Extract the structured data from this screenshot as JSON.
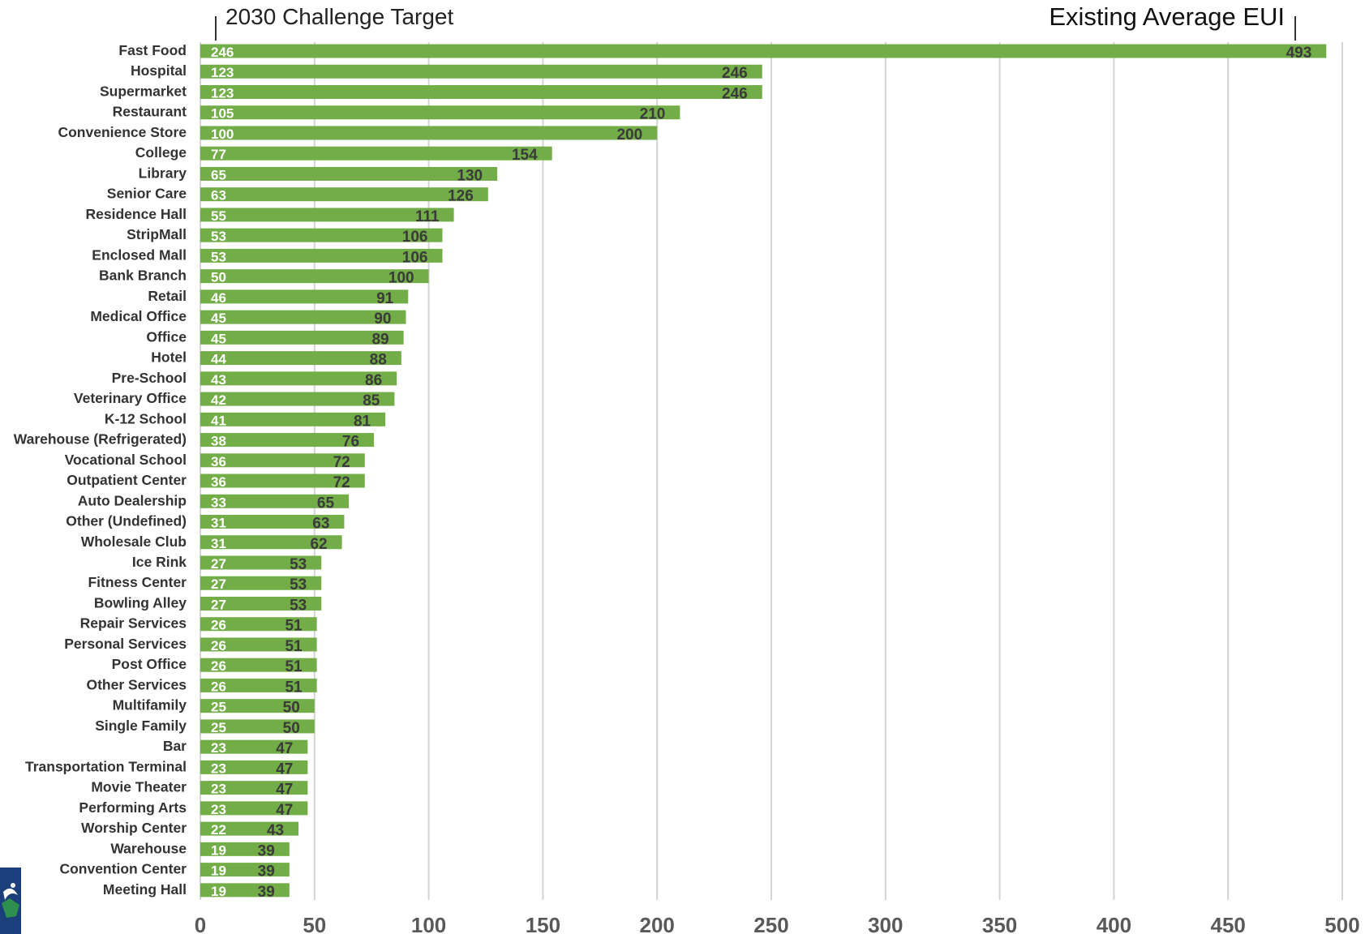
{
  "chart_data": {
    "type": "bar",
    "orientation": "horizontal",
    "title": "",
    "xlabel": "",
    "ylabel": "",
    "xlim": [
      0,
      500
    ],
    "x_ticks": [
      0,
      50,
      100,
      150,
      200,
      250,
      300,
      350,
      400,
      450,
      500
    ],
    "grid": true,
    "legend_position": "top",
    "bar_color": "#72ad47",
    "annotations": {
      "target": "2030 Challenge Target",
      "existing": "Existing Average EUI"
    },
    "categories": [
      "Fast Food",
      "Hospital",
      "Supermarket",
      "Restaurant",
      "Convenience Store",
      "College",
      "Library",
      "Senior Care",
      "Residence Hall",
      "StripMall",
      "Enclosed Mall",
      "Bank Branch",
      "Retail",
      "Medical Office",
      "Office",
      "Hotel",
      "Pre-School",
      "Veterinary Office",
      "K-12 School",
      "Warehouse (Refrigerated)",
      "Vocational School",
      "Outpatient Center",
      "Auto Dealership",
      "Other (Undefined)",
      "Wholesale Club",
      "Ice Rink",
      "Fitness Center",
      "Bowling Alley",
      "Repair Services",
      "Personal Services",
      "Post Office",
      "Other Services",
      "Multifamily",
      "Single Family",
      "Bar",
      "Transportation Terminal",
      "Movie Theater",
      "Performing Arts",
      "Worship Center",
      "Warehouse",
      "Convention Center",
      "Meeting Hall"
    ],
    "series": [
      {
        "name": "Existing Average EUI",
        "values": [
          493,
          246,
          246,
          210,
          200,
          154,
          130,
          126,
          111,
          106,
          106,
          100,
          91,
          90,
          89,
          88,
          86,
          85,
          81,
          76,
          72,
          72,
          65,
          63,
          62,
          53,
          53,
          53,
          51,
          51,
          51,
          51,
          50,
          50,
          47,
          47,
          47,
          47,
          43,
          39,
          39,
          39
        ]
      },
      {
        "name": "2030 Challenge Target",
        "values": [
          246,
          123,
          123,
          105,
          100,
          77,
          65,
          63,
          55,
          53,
          53,
          50,
          46,
          45,
          45,
          44,
          43,
          42,
          41,
          38,
          36,
          36,
          33,
          31,
          31,
          27,
          27,
          27,
          26,
          26,
          26,
          26,
          25,
          25,
          23,
          23,
          23,
          23,
          22,
          19,
          19,
          19
        ]
      }
    ]
  }
}
